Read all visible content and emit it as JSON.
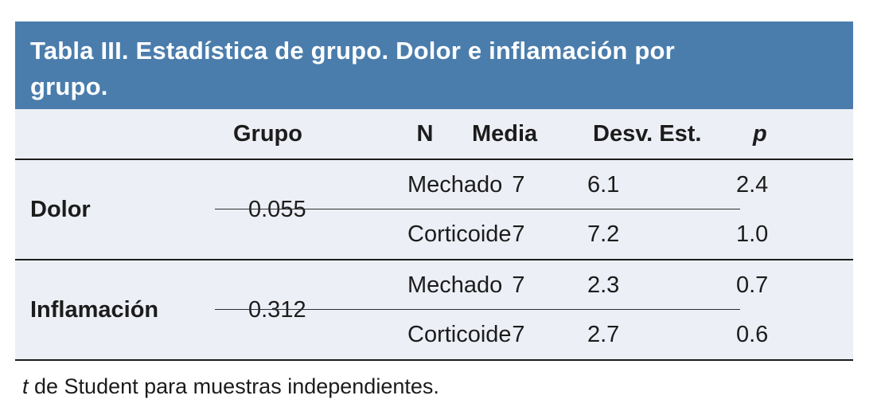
{
  "colors": {
    "accent_blue": "#4a7dac",
    "table_background": "#edeff6",
    "text": "#1c1c1c",
    "title_text": "#ffffff"
  },
  "header": {
    "title_full": "Tabla III. Estadística de grupo. Dolor e inflamación por grupo.",
    "title_lines": [
      "Tabla III. Estadística de grupo. Dolor e inflamación por",
      "grupo."
    ]
  },
  "table": {
    "columns": [
      "",
      "Grupo",
      "N",
      "Media",
      "Desv. Est.",
      "p"
    ],
    "groups": [
      {
        "label": "Dolor",
        "rows": [
          {
            "grupo": "Mechado",
            "n": "7",
            "media": "6.1",
            "desv": "2.4"
          },
          {
            "grupo": "Corticoide",
            "n": "7",
            "media": "7.2",
            "desv": "1.0"
          }
        ],
        "p": "0.055"
      },
      {
        "label": "Inflamación",
        "rows": [
          {
            "grupo": "Mechado",
            "n": "7",
            "media": "2.3",
            "desv": "0.7"
          },
          {
            "grupo": "Corticoide",
            "n": "7",
            "media": "2.7",
            "desv": "0.6"
          }
        ],
        "p": "0.312"
      }
    ]
  },
  "footnote": {
    "italic_prefix": "t",
    "text": " de Student para muestras independientes."
  }
}
